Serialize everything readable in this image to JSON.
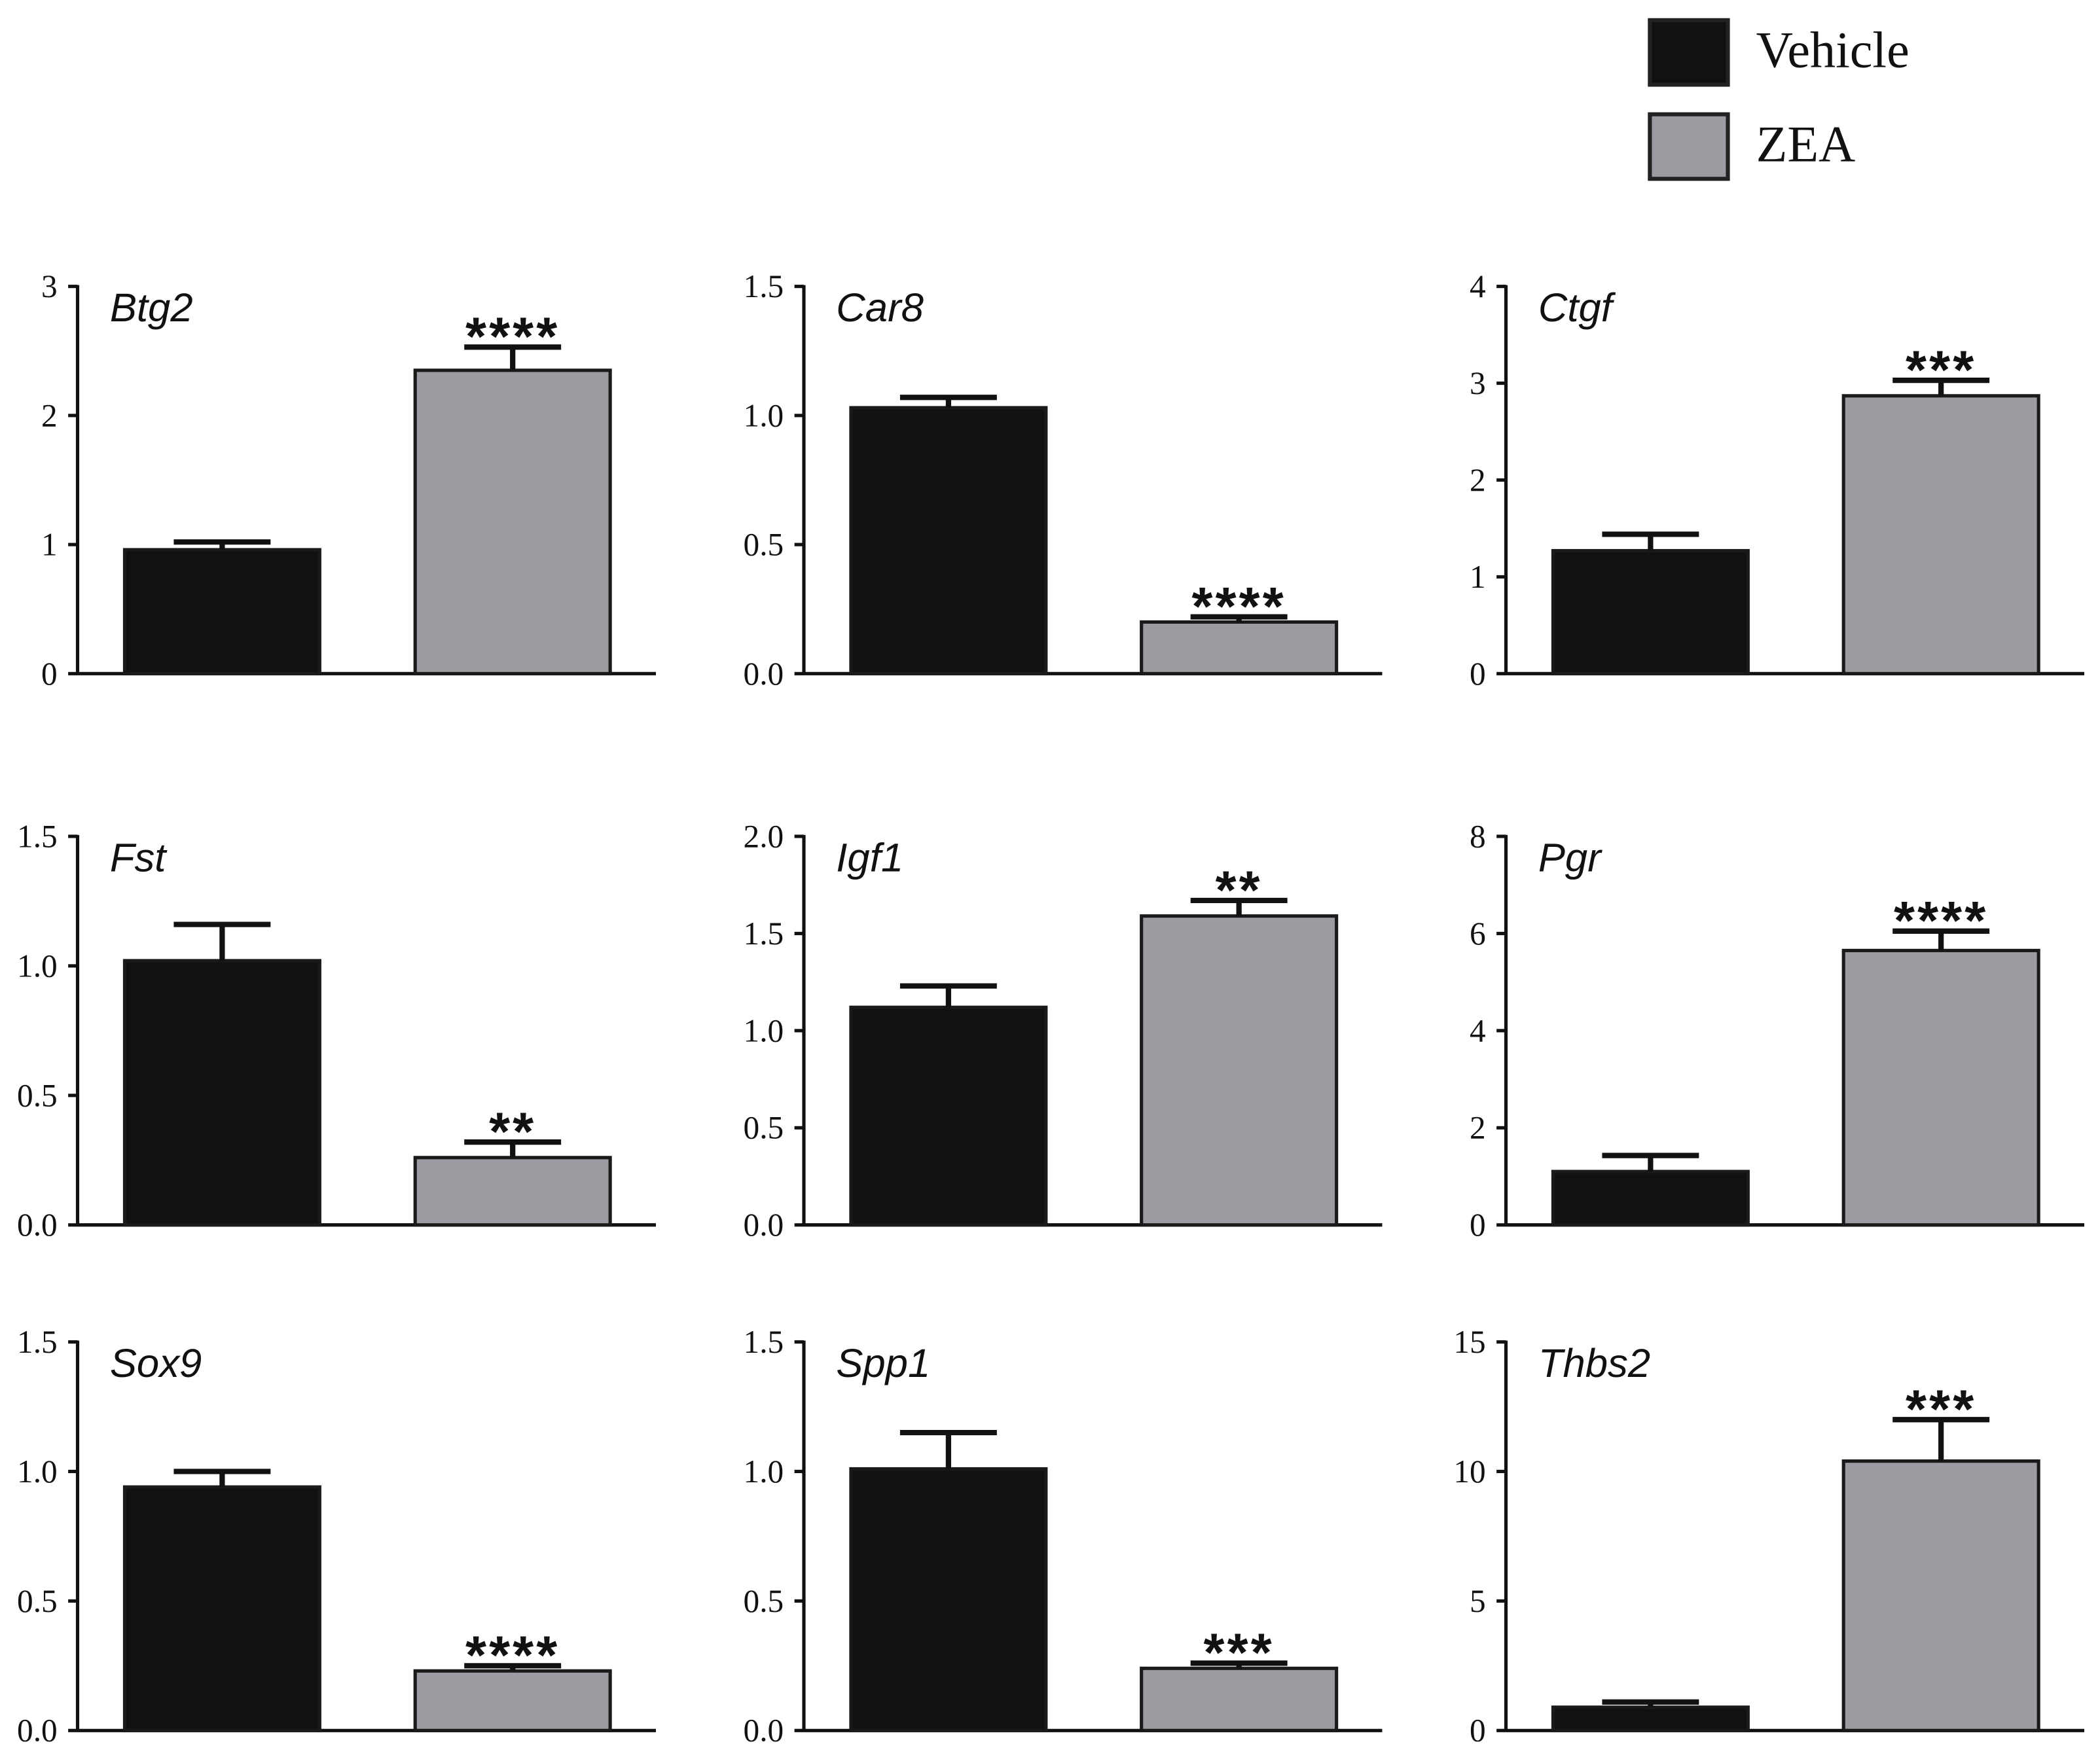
{
  "chart_data": {
    "type": "bar",
    "legend_position": "top-right",
    "legend": [
      {
        "name": "Vehicle",
        "color": "#111111"
      },
      {
        "name": "ZEA",
        "color": "#9c9ba1"
      }
    ],
    "categories": [
      "Vehicle",
      "ZEA"
    ],
    "panels": [
      {
        "title": "Btg2",
        "ylim": [
          0,
          3
        ],
        "yticks": [
          "0",
          "1",
          "2",
          "3"
        ],
        "values": [
          0.96,
          2.35
        ],
        "errors": [
          0.06,
          0.18
        ],
        "significance": [
          "",
          "****"
        ]
      },
      {
        "title": "Car8",
        "ylim": [
          0,
          1.5
        ],
        "yticks": [
          "0.0",
          "0.5",
          "1.0",
          "1.5"
        ],
        "values": [
          1.03,
          0.2
        ],
        "errors": [
          0.04,
          0.02
        ],
        "significance": [
          "",
          "****"
        ]
      },
      {
        "title": "Ctgf",
        "ylim": [
          0,
          4
        ],
        "yticks": [
          "0",
          "1",
          "2",
          "3",
          "4"
        ],
        "values": [
          1.27,
          2.87
        ],
        "errors": [
          0.17,
          0.16
        ],
        "significance": [
          "",
          "***"
        ]
      },
      {
        "title": "Fst",
        "ylim": [
          0,
          1.5
        ],
        "yticks": [
          "0.0",
          "0.5",
          "1.0",
          "1.5"
        ],
        "values": [
          1.02,
          0.26
        ],
        "errors": [
          0.14,
          0.06
        ],
        "significance": [
          "",
          "**"
        ]
      },
      {
        "title": "Igf1",
        "ylim": [
          0,
          2.0
        ],
        "yticks": [
          "0.0",
          "0.5",
          "1.0",
          "1.5",
          "2.0"
        ],
        "values": [
          1.12,
          1.59
        ],
        "errors": [
          0.11,
          0.08
        ],
        "significance": [
          "",
          "**"
        ]
      },
      {
        "title": "Pgr",
        "ylim": [
          0,
          8
        ],
        "yticks": [
          "0",
          "2",
          "4",
          "6",
          "8"
        ],
        "values": [
          1.1,
          5.65
        ],
        "errors": [
          0.33,
          0.4
        ],
        "significance": [
          "",
          "****"
        ]
      },
      {
        "title": "Sox9",
        "ylim": [
          0,
          1.5
        ],
        "yticks": [
          "0.0",
          "0.5",
          "1.0",
          "1.5"
        ],
        "values": [
          0.94,
          0.23
        ],
        "errors": [
          0.06,
          0.02
        ],
        "significance": [
          "",
          "****"
        ]
      },
      {
        "title": "Spp1",
        "ylim": [
          0,
          1.5
        ],
        "yticks": [
          "0.0",
          "0.5",
          "1.0",
          "1.5"
        ],
        "values": [
          1.01,
          0.24
        ],
        "errors": [
          0.14,
          0.02
        ],
        "significance": [
          "",
          "***"
        ]
      },
      {
        "title": "Thbs2",
        "ylim": [
          0,
          15
        ],
        "yticks": [
          "0",
          "5",
          "10",
          "15"
        ],
        "values": [
          0.9,
          10.4
        ],
        "errors": [
          0.2,
          1.6
        ],
        "significance": [
          "",
          "***"
        ]
      }
    ]
  }
}
